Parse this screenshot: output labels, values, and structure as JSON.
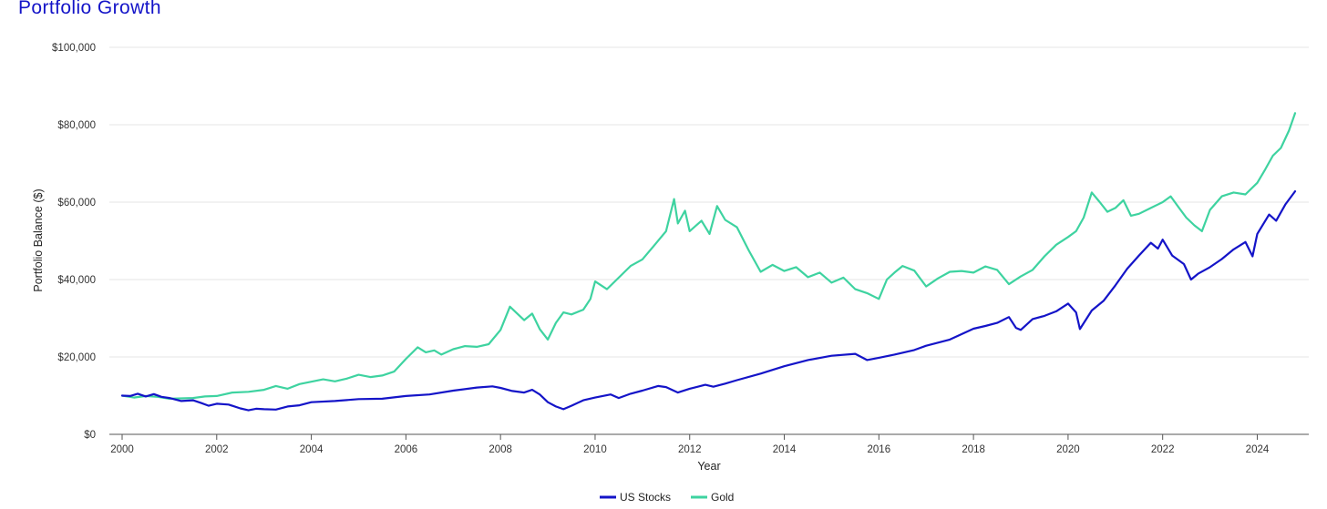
{
  "page": {
    "title": "Portfolio Growth"
  },
  "colors": {
    "title": "#1414c8",
    "us_stocks": "#1414c8",
    "gold": "#3ed3a0",
    "grid": "#e4e4e4",
    "axis": "#555555"
  },
  "chart_data": {
    "type": "line",
    "title": "Portfolio Growth",
    "xlabel": "Year",
    "ylabel": "Portfolio Balance ($)",
    "xlim": [
      2000,
      2024.8
    ],
    "ylim": [
      0,
      100000
    ],
    "xticks": [
      2000,
      2002,
      2004,
      2006,
      2008,
      2010,
      2012,
      2014,
      2016,
      2018,
      2020,
      2022,
      2024
    ],
    "xtick_labels": [
      "2000",
      "2002",
      "2004",
      "2006",
      "2008",
      "2010",
      "2012",
      "2014",
      "2016",
      "2018",
      "2020",
      "2022",
      "2024"
    ],
    "yticks": [
      0,
      20000,
      40000,
      60000,
      80000,
      100000
    ],
    "ytick_labels": [
      "$0",
      "$20,000",
      "$40,000",
      "$60,000",
      "$80,000",
      "$100,000"
    ],
    "grid": true,
    "legend_position": "bottom-center",
    "series": [
      {
        "name": "US Stocks",
        "color": "#1414c8",
        "x": [
          2000.0,
          2000.17,
          2000.33,
          2000.5,
          2000.67,
          2000.83,
          2001.0,
          2001.25,
          2001.5,
          2001.67,
          2001.83,
          2002.0,
          2002.25,
          2002.5,
          2002.67,
          2002.83,
          2003.0,
          2003.25,
          2003.5,
          2003.75,
          2004.0,
          2004.5,
          2005.0,
          2005.5,
          2006.0,
          2006.5,
          2007.0,
          2007.5,
          2007.83,
          2008.0,
          2008.25,
          2008.5,
          2008.67,
          2008.83,
          2009.0,
          2009.17,
          2009.33,
          2009.5,
          2009.75,
          2010.0,
          2010.33,
          2010.5,
          2010.75,
          2011.0,
          2011.33,
          2011.5,
          2011.75,
          2012.0,
          2012.33,
          2012.5,
          2012.75,
          2013.0,
          2013.5,
          2014.0,
          2014.5,
          2015.0,
          2015.5,
          2015.75,
          2016.0,
          2016.33,
          2016.75,
          2017.0,
          2017.5,
          2018.0,
          2018.25,
          2018.5,
          2018.75,
          2018.9,
          2019.0,
          2019.25,
          2019.5,
          2019.75,
          2020.0,
          2020.17,
          2020.25,
          2020.5,
          2020.75,
          2021.0,
          2021.25,
          2021.5,
          2021.75,
          2021.9,
          2022.0,
          2022.2,
          2022.45,
          2022.6,
          2022.75,
          2023.0,
          2023.25,
          2023.5,
          2023.75,
          2023.9,
          2024.0,
          2024.25,
          2024.4,
          2024.6,
          2024.8
        ],
        "values": [
          10000,
          9900,
          10500,
          9800,
          10400,
          9700,
          9400,
          8600,
          8800,
          8100,
          7400,
          7900,
          7700,
          6700,
          6200,
          6600,
          6500,
          6400,
          7200,
          7500,
          8300,
          8600,
          9100,
          9200,
          9900,
          10300,
          11300,
          12100,
          12400,
          12000,
          11200,
          10800,
          11500,
          10300,
          8300,
          7200,
          6500,
          7400,
          8800,
          9500,
          10300,
          9400,
          10500,
          11300,
          12500,
          12200,
          10800,
          11800,
          12800,
          12300,
          13100,
          14000,
          15700,
          17600,
          19200,
          20300,
          20800,
          19200,
          19800,
          20600,
          21800,
          22900,
          24500,
          27300,
          28000,
          28800,
          30300,
          27500,
          27000,
          29800,
          30600,
          31800,
          33800,
          31500,
          27200,
          32000,
          34500,
          38500,
          42800,
          46200,
          49500,
          48000,
          50300,
          46200,
          44000,
          40000,
          41500,
          43200,
          45300,
          47800,
          49700,
          46000,
          51800,
          56800,
          55200,
          59500,
          62800
        ]
      },
      {
        "name": "Gold",
        "color": "#3ed3a0",
        "x": [
          2000.0,
          2000.25,
          2000.5,
          2000.75,
          2001.0,
          2001.25,
          2001.5,
          2001.75,
          2002.0,
          2002.33,
          2002.67,
          2003.0,
          2003.25,
          2003.5,
          2003.75,
          2004.0,
          2004.25,
          2004.5,
          2004.75,
          2005.0,
          2005.25,
          2005.5,
          2005.75,
          2006.0,
          2006.25,
          2006.42,
          2006.6,
          2006.75,
          2007.0,
          2007.25,
          2007.5,
          2007.75,
          2008.0,
          2008.2,
          2008.5,
          2008.67,
          2008.83,
          2009.0,
          2009.17,
          2009.33,
          2009.5,
          2009.75,
          2009.9,
          2010.0,
          2010.25,
          2010.5,
          2010.75,
          2011.0,
          2011.25,
          2011.5,
          2011.67,
          2011.75,
          2011.9,
          2012.0,
          2012.25,
          2012.42,
          2012.58,
          2012.75,
          2013.0,
          2013.25,
          2013.5,
          2013.75,
          2014.0,
          2014.25,
          2014.5,
          2014.75,
          2015.0,
          2015.25,
          2015.5,
          2015.75,
          2016.0,
          2016.17,
          2016.33,
          2016.5,
          2016.75,
          2017.0,
          2017.25,
          2017.5,
          2017.75,
          2018.0,
          2018.25,
          2018.5,
          2018.75,
          2019.0,
          2019.25,
          2019.5,
          2019.75,
          2020.0,
          2020.17,
          2020.33,
          2020.5,
          2020.67,
          2020.83,
          2021.0,
          2021.17,
          2021.33,
          2021.5,
          2021.75,
          2022.0,
          2022.17,
          2022.33,
          2022.5,
          2022.67,
          2022.83,
          2023.0,
          2023.25,
          2023.5,
          2023.75,
          2024.0,
          2024.17,
          2024.33,
          2024.5,
          2024.67,
          2024.8
        ],
        "values": [
          10000,
          9500,
          9900,
          9700,
          9200,
          9300,
          9400,
          9800,
          9900,
          10800,
          11000,
          11500,
          12500,
          11800,
          13000,
          13600,
          14200,
          13700,
          14400,
          15400,
          14800,
          15200,
          16200,
          19500,
          22500,
          21200,
          21700,
          20600,
          22000,
          22800,
          22600,
          23300,
          27000,
          33000,
          29500,
          31200,
          27200,
          24500,
          28800,
          31500,
          31000,
          32200,
          35000,
          39500,
          37500,
          40500,
          43500,
          45200,
          48800,
          52500,
          60800,
          54500,
          57800,
          52500,
          55200,
          51800,
          59000,
          55400,
          53500,
          47500,
          42000,
          43800,
          42200,
          43200,
          40600,
          41800,
          39200,
          40500,
          37500,
          36500,
          35000,
          40000,
          41800,
          43500,
          42300,
          38200,
          40300,
          42000,
          42200,
          41800,
          43400,
          42500,
          38800,
          40800,
          42500,
          46000,
          49000,
          51000,
          52500,
          56000,
          62500,
          60000,
          57500,
          58500,
          60500,
          56500,
          57000,
          58500,
          60000,
          61500,
          58800,
          56000,
          54000,
          52500,
          58000,
          61500,
          62500,
          62000,
          65000,
          68500,
          72000,
          74000,
          78500,
          83000
        ]
      }
    ]
  }
}
